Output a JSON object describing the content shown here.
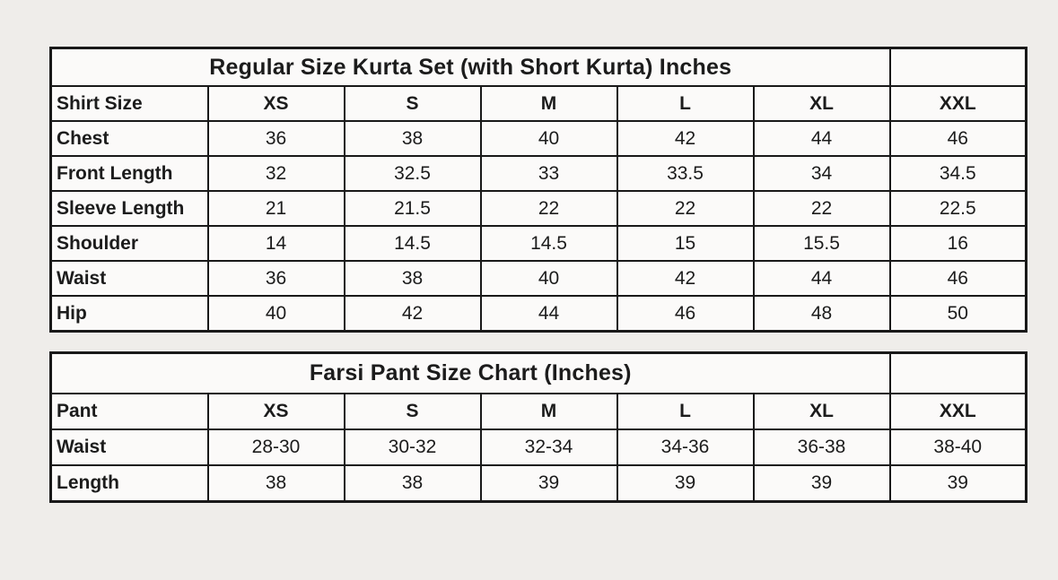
{
  "colors": {
    "page_background": "#efedea",
    "cell_background": "#fbfaf9",
    "border": "#191919",
    "text": "#1c1c1c"
  },
  "chart_data": [
    {
      "type": "table",
      "title": "Regular Size Kurta Set (with Short Kurta) Inches",
      "columns": [
        "Shirt Size",
        "XS",
        "S",
        "M",
        "L",
        "XL",
        "XXL"
      ],
      "rows": [
        [
          "Chest",
          "36",
          "38",
          "40",
          "42",
          "44",
          "46"
        ],
        [
          "Front Length",
          "32",
          "32.5",
          "33",
          "33.5",
          "34",
          "34.5"
        ],
        [
          "Sleeve Length",
          "21",
          "21.5",
          "22",
          "22",
          "22",
          "22.5"
        ],
        [
          "Shoulder",
          "14",
          "14.5",
          "14.5",
          "15",
          "15.5",
          "16"
        ],
        [
          "Waist",
          "36",
          "38",
          "40",
          "42",
          "44",
          "46"
        ],
        [
          "Hip",
          "40",
          "42",
          "44",
          "46",
          "48",
          "50"
        ]
      ]
    },
    {
      "type": "table",
      "title": "Farsi Pant Size Chart (Inches)",
      "columns": [
        "Pant",
        "XS",
        "S",
        "M",
        "L",
        "XL",
        "XXL"
      ],
      "rows": [
        [
          "Waist",
          "28-30",
          "30-32",
          "32-34",
          "34-36",
          "36-38",
          "38-40"
        ],
        [
          "Length",
          "38",
          "38",
          "39",
          "39",
          "39",
          "39"
        ]
      ]
    }
  ]
}
